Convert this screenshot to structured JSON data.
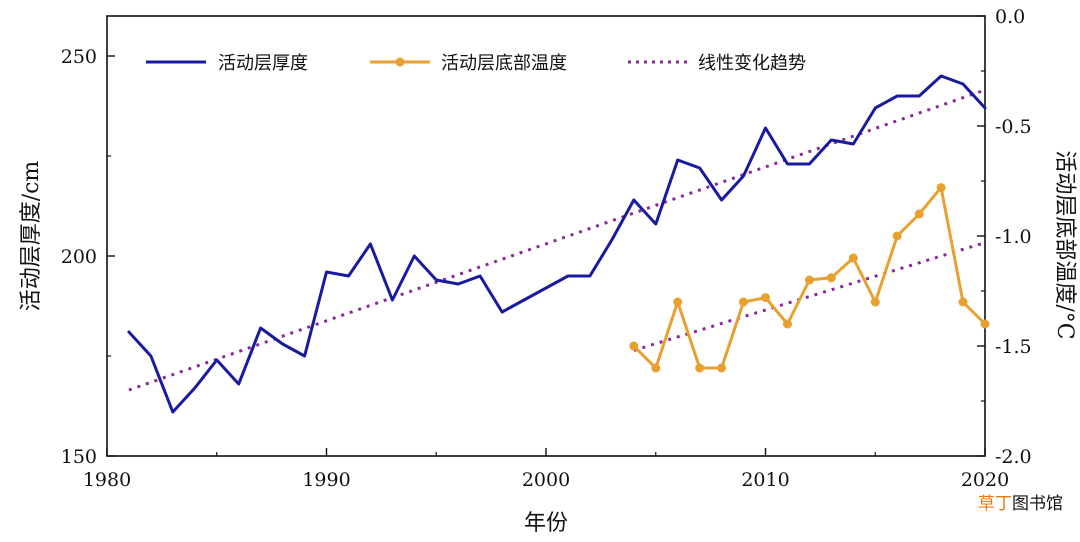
{
  "chart_data": {
    "type": "line",
    "xlabel": "年份",
    "ylabel_left": "活动层厚度/cm",
    "ylabel_right": "活动层底部温度/°C",
    "xlim": [
      1980,
      2020
    ],
    "ylim_left": [
      150,
      260
    ],
    "ylim_right": [
      -2.0,
      0.0
    ],
    "x_ticks": [
      "1980",
      "1990",
      "2000",
      "2010",
      "2020"
    ],
    "y_left_ticks": [
      "150",
      "200",
      "250"
    ],
    "y_right_ticks": [
      "0.0",
      "-0.5",
      "-1.0",
      "-1.5",
      "-2.0"
    ],
    "legend_position": "top",
    "series": [
      {
        "name": "活动层厚度",
        "axis": "left",
        "color": "#1a1aa0",
        "style": "solid",
        "x": [
          1981,
          1982,
          1983,
          1984,
          1985,
          1986,
          1987,
          1988,
          1989,
          1990,
          1991,
          1992,
          1993,
          1994,
          1995,
          1996,
          1997,
          1998,
          1999,
          2000,
          2001,
          2002,
          2003,
          2004,
          2005,
          2006,
          2007,
          2008,
          2009,
          2010,
          2011,
          2012,
          2013,
          2014,
          2015,
          2016,
          2017,
          2018,
          2019,
          2020
        ],
        "values": [
          181,
          175,
          161,
          167,
          174,
          168,
          182,
          178,
          175,
          196,
          195,
          203,
          189,
          200,
          194,
          193,
          195,
          186,
          189,
          192,
          195,
          195,
          204,
          214,
          208,
          224,
          222,
          214,
          220,
          232,
          223,
          223,
          229,
          228,
          237,
          240,
          240,
          245,
          243,
          237
        ]
      },
      {
        "name": "活动层底部温度",
        "axis": "right",
        "color": "#e8a030",
        "style": "solid-markers",
        "x": [
          2004,
          2005,
          2006,
          2007,
          2008,
          2009,
          2010,
          2011,
          2012,
          2013,
          2014,
          2015,
          2016,
          2017,
          2018,
          2019,
          2020
        ],
        "values": [
          -1.5,
          -1.6,
          -1.3,
          -1.6,
          -1.6,
          -1.3,
          -1.28,
          -1.4,
          -1.2,
          -1.19,
          -1.1,
          -1.3,
          -1.0,
          -0.9,
          -0.78,
          -1.3,
          -1.4
        ]
      },
      {
        "name": "线性变化趋势",
        "axis": "left",
        "color": "#8a2a9a",
        "style": "dotted",
        "x": [
          1981,
          2020
        ],
        "values": [
          166.5,
          241.5
        ]
      },
      {
        "axis": "right",
        "color": "#8a2a9a",
        "style": "dotted",
        "x": [
          2004,
          2020
        ],
        "values": [
          -1.52,
          -1.03
        ]
      }
    ]
  },
  "watermark": {
    "brand": "草丁",
    "suffix": "图书馆"
  }
}
